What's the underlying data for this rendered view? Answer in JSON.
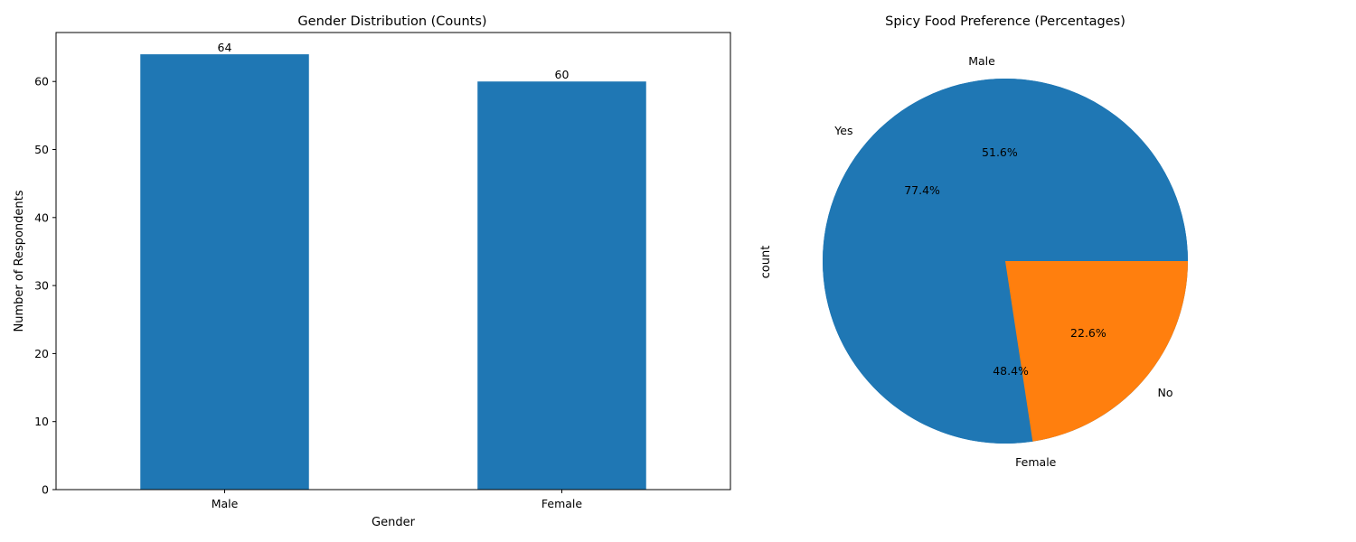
{
  "chart_data": [
    {
      "type": "bar",
      "title": "Gender Distribution (Counts)",
      "xlabel": "Gender",
      "ylabel": "Number of Respondents",
      "categories": [
        "Male",
        "Female"
      ],
      "values": [
        64,
        60
      ],
      "data_labels": [
        "64",
        "60"
      ],
      "ylim": [
        0,
        67.2
      ],
      "yticks": [
        0,
        10,
        20,
        30,
        40,
        50,
        60
      ],
      "color": "#1f77b4",
      "grid": false,
      "legend": "none"
    },
    {
      "type": "pie",
      "title": "Spicy Food Preference (Percentages)",
      "ylabel": "count",
      "layers": [
        {
          "labels": [
            "Male",
            "Female"
          ],
          "values": [
            51.6,
            48.4
          ],
          "pct_labels": [
            "51.6%",
            "48.4%"
          ],
          "colors": [
            "#1f77b4",
            "#1f77b4"
          ]
        },
        {
          "labels": [
            "Yes",
            "No"
          ],
          "values": [
            77.4,
            22.6
          ],
          "pct_labels": [
            "77.4%",
            "22.6%"
          ],
          "colors": [
            "#1f77b4",
            "#ff7f0e"
          ]
        }
      ],
      "legend": "none"
    }
  ]
}
